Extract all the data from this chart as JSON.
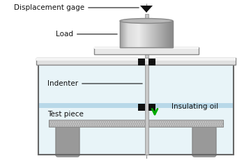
{
  "background": "#ffffff",
  "labels": {
    "displacement_gage": "Displacement gage",
    "load": "Load",
    "indenter": "Indenter",
    "insulating_oil": "Insulating oil",
    "test_piece": "Test piece"
  },
  "colors": {
    "tank_fill_upper": "#e8f4f8",
    "tank_fill_lower": "#d0e8f0",
    "tank_outline": "#666666",
    "oil_band": "#b8d8e8",
    "beam_fill": "#e0e0e0",
    "beam_outline": "#888888",
    "cyl_light": "#f0f0f0",
    "cyl_dark": "#a0a0a0",
    "cyl_outline": "#888888",
    "rod_fill": "#c8c8c8",
    "rod_outline": "#888888",
    "clip_fill": "#111111",
    "tp_fill": "#c8c8c8",
    "tp_outline": "#888888",
    "support_fill": "#999999",
    "support_outline": "#888888",
    "pointer_fill": "#111111",
    "green_arrow": "#00aa00",
    "text_color": "#111111",
    "dashed": "#888888"
  },
  "figsize": [
    3.5,
    2.34
  ],
  "dpi": 100
}
